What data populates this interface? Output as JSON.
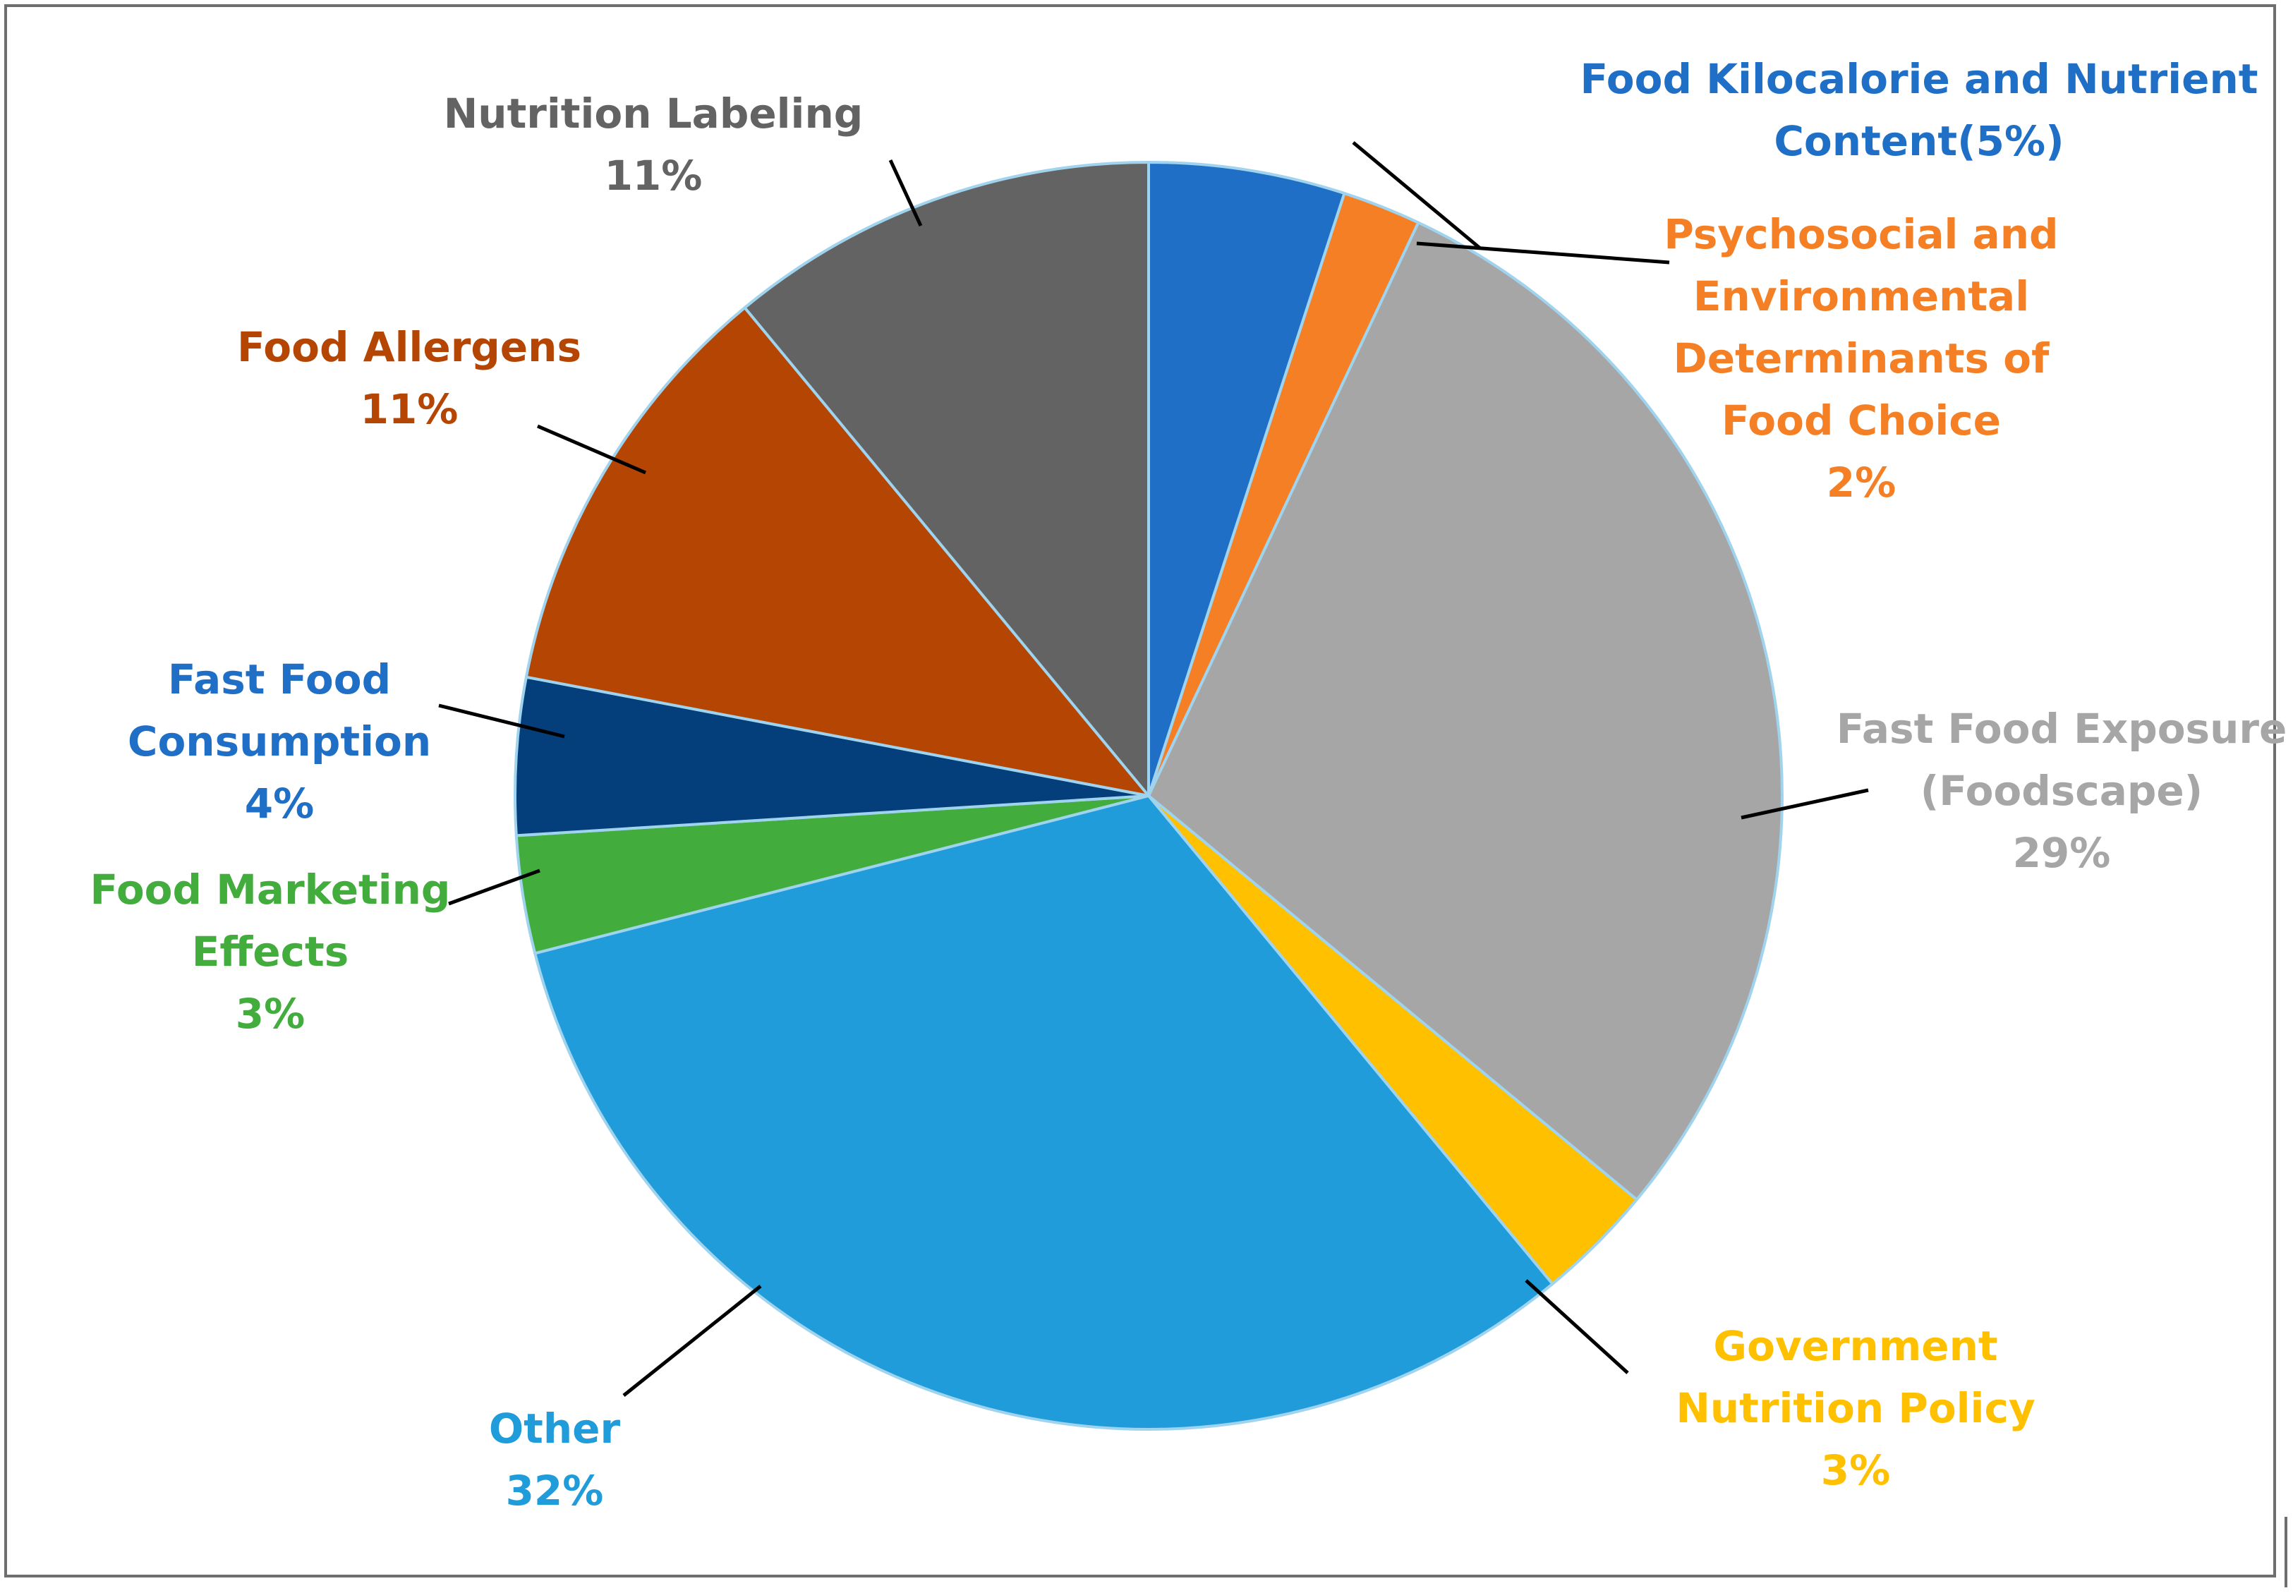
{
  "chart_data": {
    "type": "pie",
    "title": "",
    "start_angle_deg": 0,
    "direction": "clockwise",
    "slices": [
      {
        "id": "kilocalorie",
        "label_lines": [
          "Food Kilocalorie and Nutrient",
          "Content(5%)"
        ],
        "value": 5,
        "percent_label": "",
        "color": "#1f6fc6",
        "label_color": "#1f6fc6"
      },
      {
        "id": "psychosocial",
        "label_lines": [
          "Psychosocial and",
          "Environmental",
          "Determinants of",
          "Food Choice"
        ],
        "value": 2,
        "percent_label": "2%",
        "color": "#f47f24",
        "label_color": "#f47f24"
      },
      {
        "id": "fastfood-exposure",
        "label_lines": [
          "Fast Food Exposure",
          "(Foodscape)"
        ],
        "value": 29,
        "percent_label": "29%",
        "color": "#a6a6a6",
        "label_color": "#a6a6a6"
      },
      {
        "id": "government-policy",
        "label_lines": [
          "Government",
          "Nutrition Policy"
        ],
        "value": 3,
        "percent_label": "3%",
        "color": "#ffc000",
        "label_color": "#ffc000"
      },
      {
        "id": "other",
        "label_lines": [
          "Other"
        ],
        "value": 32,
        "percent_label": "32%",
        "color": "#1f9cd9",
        "label_color": "#1f9cd9"
      },
      {
        "id": "marketing",
        "label_lines": [
          "Food Marketing",
          "Effects"
        ],
        "value": 3,
        "percent_label": "3%",
        "color": "#42ad3c",
        "label_color": "#42ad3c"
      },
      {
        "id": "fastfood-consumption",
        "label_lines": [
          "Fast Food",
          "Consumption"
        ],
        "value": 4,
        "percent_label": "4%",
        "color": "#043e7b",
        "label_color": "#1f6fc6"
      },
      {
        "id": "allergens",
        "label_lines": [
          "Food Allergens"
        ],
        "value": 11,
        "percent_label": "11%",
        "color": "#b54503",
        "label_color": "#b54503"
      },
      {
        "id": "labeling",
        "label_lines": [
          "Nutrition Labeling"
        ],
        "value": 11,
        "percent_label": "11%",
        "color": "#636363",
        "label_color": "#636363"
      }
    ]
  }
}
